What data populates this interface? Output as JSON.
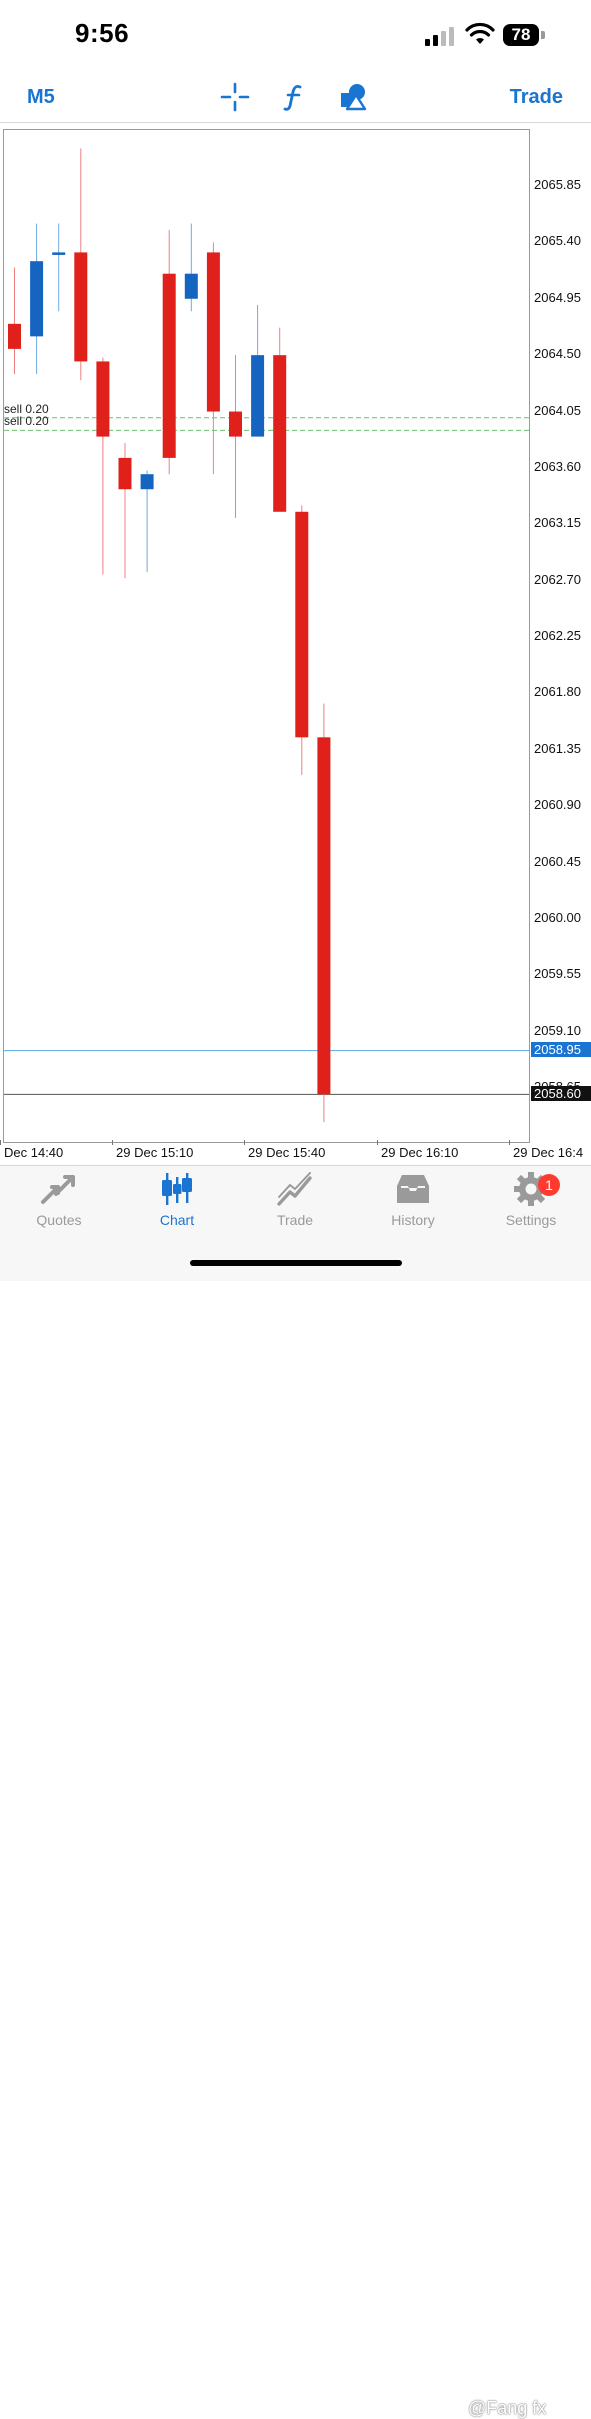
{
  "status_bar": {
    "time": "9:56",
    "battery": "78"
  },
  "toolbar": {
    "timeframe": "M5",
    "trade_label": "Trade"
  },
  "chart": {
    "price_labels": [
      "2065.85",
      "2065.40",
      "2064.95",
      "2064.50",
      "2064.05",
      "2063.60",
      "2063.15",
      "2062.70",
      "2062.25",
      "2061.80",
      "2061.35",
      "2060.90",
      "2060.45",
      "2060.00",
      "2059.55",
      "2059.10",
      "2058.65"
    ],
    "bid_price": "2058.60",
    "ask_price": "2058.95",
    "time_labels": [
      "Dec 14:40",
      "29 Dec 15:10",
      "29 Dec 15:40",
      "29 Dec 16:10",
      "29 Dec 16:4"
    ],
    "orders": [
      {
        "label": "sell 0.20",
        "price": 2064.0
      },
      {
        "label": "sell 0.20",
        "price": 2063.9
      }
    ],
    "colors": {
      "bull": "#1565c0",
      "bear": "#e0201b",
      "order_line": "#6cc070",
      "ask_line": "#5aa9e6",
      "bid_line": "#555555",
      "ask_badge": "#1a74d2",
      "bid_badge": "#111111"
    }
  },
  "chart_data": {
    "type": "candlestick",
    "symbol_timeframe": "M5",
    "ylim": [
      2058.0,
      2066.2
    ],
    "x": [
      "14:35",
      "14:40",
      "14:45",
      "14:50",
      "14:55",
      "15:00",
      "15:05",
      "15:10",
      "15:15",
      "15:20",
      "15:25",
      "15:30",
      "15:35",
      "15:40",
      "15:45"
    ],
    "open": [
      2064.75,
      2064.65,
      2065.3,
      2065.32,
      2064.45,
      2063.68,
      2063.43,
      2065.15,
      2064.95,
      2065.32,
      2064.05,
      2063.85,
      2064.5,
      2063.25,
      2061.45
    ],
    "high": [
      2065.2,
      2065.55,
      2065.55,
      2066.15,
      2064.48,
      2063.8,
      2063.58,
      2065.5,
      2065.55,
      2065.4,
      2064.5,
      2064.9,
      2064.72,
      2063.3,
      2061.72
    ],
    "low": [
      2064.35,
      2064.35,
      2064.85,
      2064.3,
      2062.75,
      2062.72,
      2062.77,
      2063.55,
      2064.85,
      2063.55,
      2063.2,
      2063.85,
      2063.3,
      2061.15,
      2058.38
    ],
    "close": [
      2064.55,
      2065.25,
      2065.32,
      2064.45,
      2063.85,
      2063.43,
      2063.55,
      2063.68,
      2065.15,
      2064.05,
      2063.85,
      2064.5,
      2063.25,
      2061.45,
      2058.6
    ],
    "orders": [
      2064.0,
      2063.9
    ],
    "bid": 2058.6,
    "ask": 2058.95
  },
  "tabs": [
    {
      "label": "Quotes",
      "icon": "quotes-arrows-icon"
    },
    {
      "label": "Chart",
      "icon": "candles-icon"
    },
    {
      "label": "Trade",
      "icon": "trade-line-icon"
    },
    {
      "label": "History",
      "icon": "inbox-icon"
    },
    {
      "label": "Settings",
      "icon": "gear-icon",
      "badge": "1"
    }
  ],
  "watermark": "@Fang fx"
}
